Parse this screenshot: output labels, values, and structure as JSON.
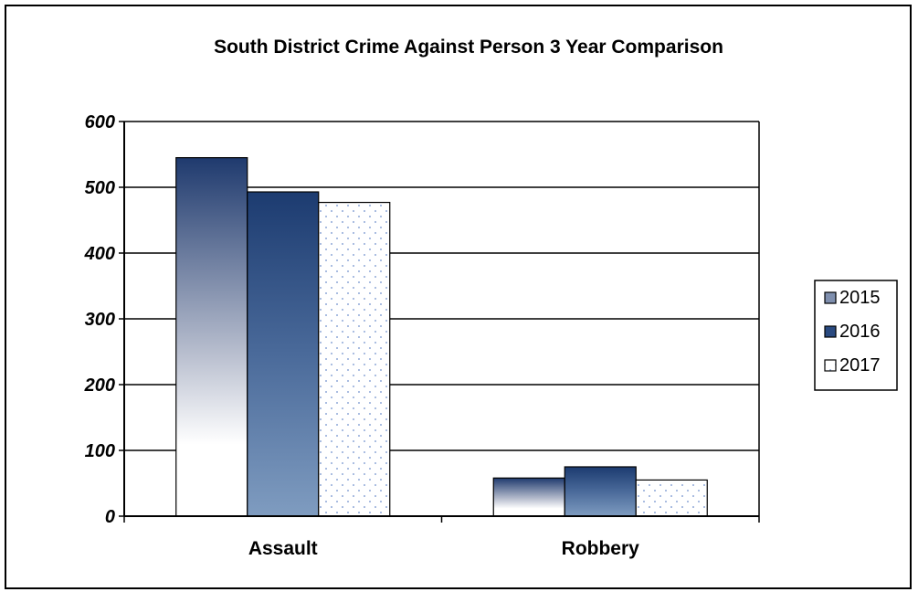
{
  "chart_data": {
    "type": "bar",
    "title": "South District Crime Against Person 3 Year Comparison",
    "xlabel": "",
    "ylabel": "",
    "categories": [
      "Assault",
      "Robbery"
    ],
    "ylim": [
      0,
      600
    ],
    "yticks": [
      "0",
      "100",
      "200",
      "300",
      "400",
      "500",
      "600"
    ],
    "series": [
      {
        "name": "2015",
        "values": [
          545,
          58
        ],
        "color": "#1f3a6e",
        "style": "gradient-white"
      },
      {
        "name": "2016",
        "values": [
          493,
          75
        ],
        "color": "#1f3a6e",
        "style": "gradient-blue"
      },
      {
        "name": "2017",
        "values": [
          477,
          55
        ],
        "color": "#8fa8d8",
        "style": "dotted"
      }
    ],
    "grid": true,
    "legend_position": "right"
  }
}
